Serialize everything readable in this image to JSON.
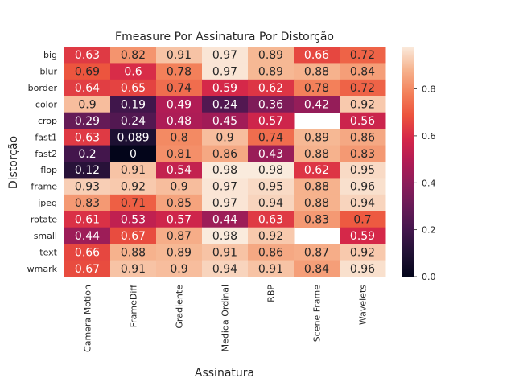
{
  "chart_data": {
    "type": "heatmap",
    "title": "Fmeasure Por Assinatura Por Distorção",
    "xlabel": "Assinatura",
    "ylabel": "Distorção",
    "columns": [
      "Camera Motion",
      "FrameDiff",
      "Gradiente",
      "Medida Ordinal",
      "RBP",
      "Scene Frame",
      "Wavelets"
    ],
    "rows": [
      "big",
      "blur",
      "border",
      "color",
      "crop",
      "fast1",
      "fast2",
      "flop",
      "frame",
      "jpeg",
      "rotate",
      "small",
      "text",
      "wmark"
    ],
    "values": [
      [
        0.63,
        0.82,
        0.91,
        0.97,
        0.89,
        0.66,
        0.72
      ],
      [
        0.69,
        0.6,
        0.78,
        0.97,
        0.89,
        0.88,
        0.84
      ],
      [
        0.64,
        0.65,
        0.74,
        0.59,
        0.62,
        0.78,
        0.72
      ],
      [
        0.9,
        0.19,
        0.49,
        0.24,
        0.36,
        0.42,
        0.92
      ],
      [
        0.29,
        0.24,
        0.48,
        0.45,
        0.57,
        null,
        0.56
      ],
      [
        0.63,
        0.089,
        0.8,
        0.9,
        0.74,
        0.89,
        0.86
      ],
      [
        0.2,
        0,
        0.81,
        0.86,
        0.43,
        0.88,
        0.83
      ],
      [
        0.12,
        0.91,
        0.54,
        0.98,
        0.98,
        0.62,
        0.95
      ],
      [
        0.93,
        0.92,
        0.9,
        0.97,
        0.95,
        0.88,
        0.96
      ],
      [
        0.83,
        0.71,
        0.85,
        0.97,
        0.94,
        0.88,
        0.94
      ],
      [
        0.61,
        0.53,
        0.57,
        0.44,
        0.63,
        0.83,
        0.7
      ],
      [
        0.44,
        0.67,
        0.87,
        0.98,
        0.92,
        null,
        0.59
      ],
      [
        0.66,
        0.88,
        0.89,
        0.91,
        0.86,
        0.87,
        0.92
      ],
      [
        0.67,
        0.91,
        0.9,
        0.94,
        0.91,
        0.84,
        0.96
      ]
    ],
    "colorbar": {
      "ticks": [
        "0.0",
        "0.2",
        "0.4",
        "0.6",
        "0.8"
      ],
      "range": [
        0,
        0.98
      ],
      "colormap": "rocket"
    }
  }
}
